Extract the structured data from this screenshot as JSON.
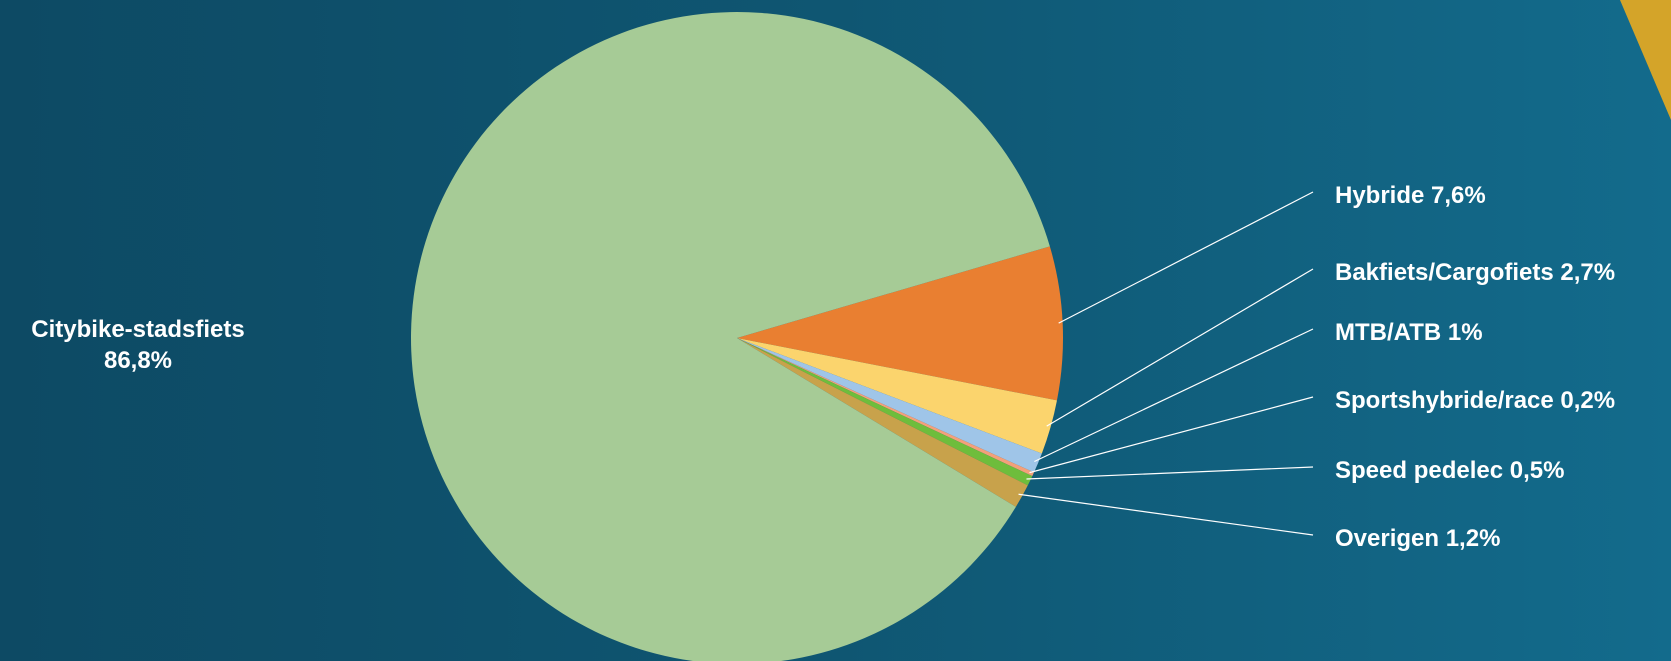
{
  "chart_data": {
    "type": "pie",
    "title": "",
    "start": "three-o'clock, clockwise",
    "slices": [
      {
        "label": "Hybride 7,6%",
        "value": 7.6,
        "color": "#e97f31"
      },
      {
        "label": "Bakfiets/Cargofiets 2,7%",
        "value": 2.7,
        "color": "#fbd46d"
      },
      {
        "label": "MTB/ATB 1%",
        "value": 1.0,
        "color": "#9fc5e8"
      },
      {
        "label": "Sportshybride/race 0,2%",
        "value": 0.2,
        "color": "#f4a07a"
      },
      {
        "label": "Speed pedelec 0,5%",
        "value": 0.5,
        "color": "#6ebd3c"
      },
      {
        "label": "Overigen 1,2%",
        "value": 1.2,
        "color": "#c8a24b"
      },
      {
        "label_line1": "Citybike-stadsfiets",
        "label_line2": "86,8%",
        "value": 86.8,
        "color": "#a6cb96"
      }
    ]
  },
  "decoration": {
    "corner_accent_color": "#d4a429"
  }
}
